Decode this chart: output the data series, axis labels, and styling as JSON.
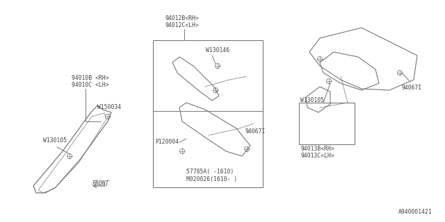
{
  "bg_color": "#ffffff",
  "line_color": "#777777",
  "text_color": "#444444",
  "watermark": "A940001421",
  "labels": {
    "94012B_RH": "94012B<RH>",
    "94012C_LH": "94012C<LH>",
    "W130146": "W130146",
    "94010B_RH": "94010B <RH>",
    "94010C_LH": "94010C <LH>",
    "W150034": "W150034",
    "W130105_left": "W130105",
    "W130105_right": "W130105",
    "94067I_center": "94067I",
    "94067I_right": "94067I",
    "P120004": "P120004",
    "57785A": "57785A( -1610)",
    "M020026": "M020026(1610- )",
    "94013B_RH": "94013B<RH>",
    "94013C_LH": "94013C<LH>",
    "FRONT": "FRONT"
  },
  "font_size": 5.8
}
